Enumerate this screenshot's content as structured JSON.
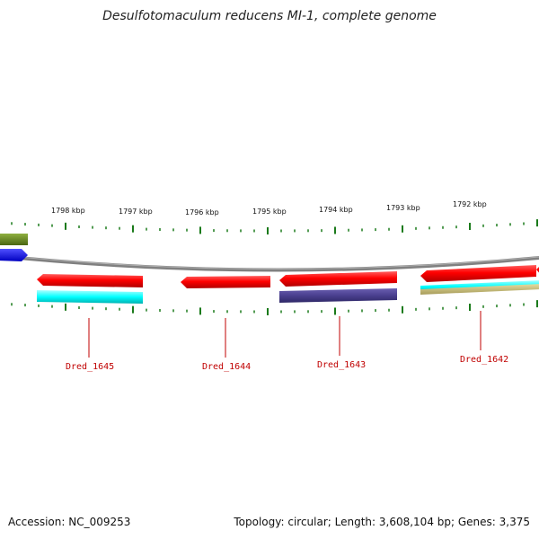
{
  "title": "Desulfotomaculum reducens MI-1, complete genome",
  "accession": "Accession: NC_009253",
  "topology": "Topology: circular; Length: 3,608,104 bp; Genes: 3,375",
  "ruler_labels": [
    "1798 kbp",
    "1797 kbp",
    "1796 kbp",
    "1795 kbp",
    "1794 kbp",
    "1793 kbp",
    "1792 kbp"
  ],
  "gene_labels": [
    "Dred_1645",
    "Dred_1644",
    "Dred_1643",
    "Dred_1642"
  ],
  "colors": {
    "cds": "#ff0000",
    "blue": "#0000ff",
    "olive": "#5e7f1e",
    "cyan": "#00ffff",
    "slate": "#4a3f8f",
    "khaki": "#c6bb78",
    "backbone": "#808080",
    "tick": "#1a7a1a",
    "label": "#c00000"
  }
}
